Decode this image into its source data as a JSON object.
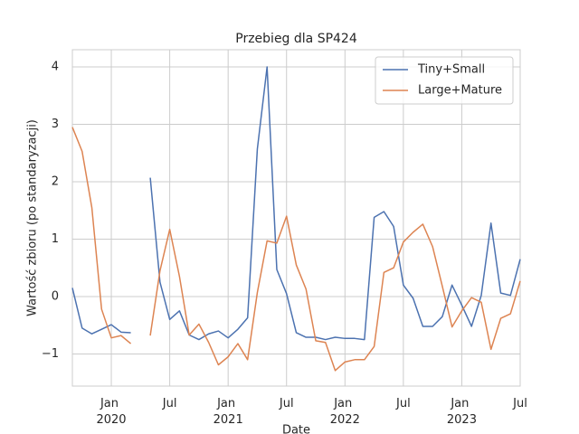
{
  "chart_data": {
    "type": "line",
    "title": "Przebieg dla SP424",
    "xlabel": "Date",
    "ylabel": "Wartość zbioru (po standaryzacji)",
    "x": [
      "2019-09",
      "2019-10",
      "2019-11",
      "2019-12",
      "2020-01",
      "2020-02",
      "2020-03",
      "2020-04",
      "2020-05",
      "2020-06",
      "2020-07",
      "2020-08",
      "2020-09",
      "2020-10",
      "2020-11",
      "2020-12",
      "2021-01",
      "2021-02",
      "2021-03",
      "2021-04",
      "2021-05",
      "2021-06",
      "2021-07",
      "2021-08",
      "2021-09",
      "2021-10",
      "2021-11",
      "2021-12",
      "2022-01",
      "2022-02",
      "2022-03",
      "2022-04",
      "2022-05",
      "2022-06",
      "2022-07",
      "2022-08",
      "2022-09",
      "2022-10",
      "2022-11",
      "2022-12",
      "2023-01",
      "2023-02",
      "2023-03",
      "2023-04",
      "2023-05",
      "2023-06",
      "2023-07"
    ],
    "series": [
      {
        "name": "Tiny+Small",
        "color": "#4c72b0",
        "values": [
          0.15,
          -0.55,
          -0.65,
          -0.57,
          -0.49,
          -0.62,
          -0.63,
          null,
          2.07,
          0.25,
          -0.4,
          -0.25,
          -0.67,
          -0.75,
          -0.65,
          -0.6,
          -0.72,
          -0.57,
          -0.37,
          2.57,
          4.0,
          0.47,
          0.05,
          -0.63,
          -0.71,
          -0.71,
          -0.75,
          -0.71,
          -0.73,
          -0.73,
          -0.75,
          1.38,
          1.48,
          1.22,
          0.2,
          -0.03,
          -0.52,
          -0.52,
          -0.35,
          0.2,
          -0.15,
          -0.52,
          0.02,
          1.28,
          0.06,
          0.02,
          0.65
        ]
      },
      {
        "name": "Large+Mature",
        "color": "#dd8452",
        "values": [
          2.95,
          2.53,
          1.55,
          -0.22,
          -0.72,
          -0.68,
          -0.82,
          null,
          -0.68,
          0.45,
          1.17,
          0.35,
          -0.67,
          -0.48,
          -0.8,
          -1.19,
          -1.05,
          -0.82,
          -1.1,
          0.07,
          0.97,
          0.93,
          1.4,
          0.55,
          0.13,
          -0.77,
          -0.8,
          -1.29,
          -1.14,
          -1.1,
          -1.1,
          -0.87,
          0.42,
          0.5,
          0.95,
          1.12,
          1.26,
          0.87,
          0.18,
          -0.53,
          -0.25,
          -0.02,
          -0.1,
          -0.92,
          -0.38,
          -0.3,
          0.27
        ]
      }
    ],
    "xlim": [
      "2019-09",
      "2023-07"
    ],
    "xticks": [
      {
        "value": "2020-01",
        "label": "Jan 2020"
      },
      {
        "value": "2020-07",
        "label": "Jul"
      },
      {
        "value": "2021-01",
        "label": "Jan 2021"
      },
      {
        "value": "2021-07",
        "label": "Jul"
      },
      {
        "value": "2022-01",
        "label": "Jan 2022"
      },
      {
        "value": "2022-07",
        "label": "Jul"
      },
      {
        "value": "2023-01",
        "label": "Jan 2023"
      },
      {
        "value": "2023-07",
        "label": "Jul"
      }
    ],
    "ylim": [
      -1.56,
      4.3
    ],
    "yticks": [
      {
        "value": -1,
        "label": "−1"
      },
      0,
      1,
      2,
      3,
      4
    ],
    "grid": true,
    "legend": "upper right"
  }
}
